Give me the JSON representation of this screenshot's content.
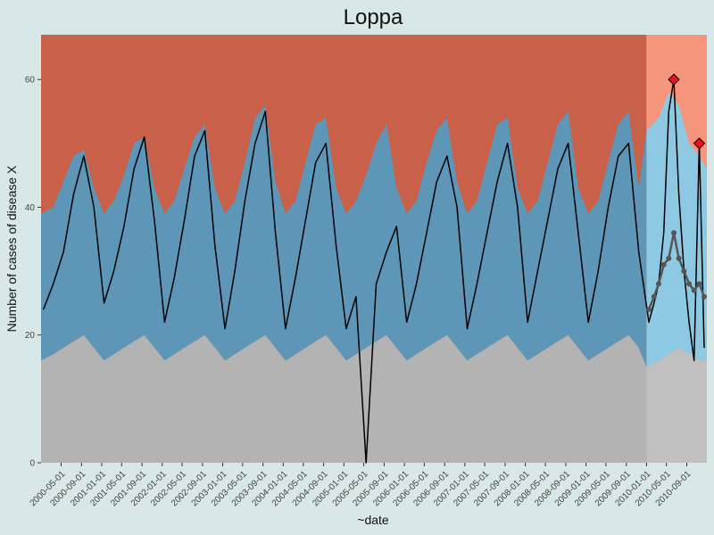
{
  "chart_data": {
    "type": "area",
    "title": "Loppa",
    "xlabel": "~date",
    "ylabel": "Number of cases of disease X",
    "ylim": [
      0,
      67
    ],
    "xlim": [
      "2000-01-01",
      "2010-12-31"
    ],
    "y_ticks": [
      0,
      20,
      40,
      60
    ],
    "x_ticks": [
      "2000-05-01",
      "2000-09-01",
      "2001-01-01",
      "2001-05-01",
      "2001-09-01",
      "2002-01-01",
      "2002-05-01",
      "2002-09-01",
      "2003-01-01",
      "2003-05-01",
      "2003-09-01",
      "2004-01-01",
      "2004-05-01",
      "2004-09-01",
      "2005-01-01",
      "2005-05-01",
      "2005-09-01",
      "2006-01-01",
      "2006-05-01",
      "2006-09-01",
      "2007-01-01",
      "2007-05-01",
      "2007-09-01",
      "2008-01-01",
      "2008-05-01",
      "2008-09-01",
      "2009-01-01",
      "2009-05-01",
      "2009-09-01",
      "2010-01-01",
      "2010-05-01",
      "2010-09-01"
    ],
    "baseline_period": [
      "2000-01-01",
      "2009-12-31"
    ],
    "surveillance_period": [
      "2010-01-01",
      "2010-12-31"
    ],
    "grid": false,
    "legend": "none",
    "series": [
      {
        "x": [
          "2000-01",
          "2000-03",
          "2000-05",
          "2000-07",
          "2000-09",
          "2000-11",
          "2001-01",
          "2001-03",
          "2001-05",
          "2001-07",
          "2001-09",
          "2001-11",
          "2002-01",
          "2002-03",
          "2002-05",
          "2002-07",
          "2002-09",
          "2002-11",
          "2003-01",
          "2003-03",
          "2003-05",
          "2003-07",
          "2003-09",
          "2003-11",
          "2004-01",
          "2004-03",
          "2004-05",
          "2004-07",
          "2004-09",
          "2004-11",
          "2005-01",
          "2005-03",
          "2005-05",
          "2005-07",
          "2005-09",
          "2005-11",
          "2006-01",
          "2006-03",
          "2006-05",
          "2006-07",
          "2006-09",
          "2006-11",
          "2007-01",
          "2007-03",
          "2007-05",
          "2007-07",
          "2007-09",
          "2007-11",
          "2008-01",
          "2008-03",
          "2008-05",
          "2008-07",
          "2008-09",
          "2008-11",
          "2009-01",
          "2009-03",
          "2009-05",
          "2009-07",
          "2009-09",
          "2009-11",
          "2010-01",
          "2010-02",
          "2010-03",
          "2010-04",
          "2010-05",
          "2010-06",
          "2010-07",
          "2010-08",
          "2010-09",
          "2010-10",
          "2010-11",
          "2010-12"
        ],
        "y": [
          24,
          28,
          33,
          42,
          48,
          40,
          25,
          30,
          37,
          46,
          51,
          38,
          22,
          29,
          38,
          48,
          52,
          34,
          21,
          30,
          41,
          50,
          55,
          36,
          21,
          29,
          38,
          47,
          50,
          34,
          21,
          26,
          0,
          28,
          33,
          37,
          22,
          28,
          36,
          44,
          48,
          40,
          21,
          28,
          36,
          44,
          50,
          40,
          22,
          30,
          38,
          46,
          50,
          36,
          22,
          30,
          40,
          48,
          50,
          33,
          22,
          25,
          28,
          36,
          55,
          60,
          42,
          30,
          22,
          16,
          50,
          18
        ],
        "type": "line"
      },
      {
        "x": [
          "2010-01",
          "2010-02",
          "2010-03",
          "2010-04",
          "2010-05",
          "2010-06",
          "2010-07",
          "2010-08",
          "2010-09",
          "2010-10",
          "2010-11",
          "2010-12"
        ],
        "y": [
          24,
          26,
          28,
          31,
          32,
          36,
          32,
          30,
          28,
          27,
          28,
          26
        ],
        "type": "line-points"
      }
    ],
    "bands": {
      "x": [
        "2000-01",
        "2000-03",
        "2000-05",
        "2000-07",
        "2000-09",
        "2000-11",
        "2001-01",
        "2001-03",
        "2001-05",
        "2001-07",
        "2001-09",
        "2001-11",
        "2002-01",
        "2002-03",
        "2002-05",
        "2002-07",
        "2002-09",
        "2002-11",
        "2003-01",
        "2003-03",
        "2003-05",
        "2003-07",
        "2003-09",
        "2003-11",
        "2004-01",
        "2004-03",
        "2004-05",
        "2004-07",
        "2004-09",
        "2004-11",
        "2005-01",
        "2005-03",
        "2005-05",
        "2005-07",
        "2005-09",
        "2005-11",
        "2006-01",
        "2006-03",
        "2006-05",
        "2006-07",
        "2006-09",
        "2006-11",
        "2007-01",
        "2007-03",
        "2007-05",
        "2007-07",
        "2007-09",
        "2007-11",
        "2008-01",
        "2008-03",
        "2008-05",
        "2008-07",
        "2008-09",
        "2008-11",
        "2009-01",
        "2009-03",
        "2009-05",
        "2009-07",
        "2009-09",
        "2009-11",
        "2010-01",
        "2010-03",
        "2010-05",
        "2010-07",
        "2010-09",
        "2010-11",
        "2010-12"
      ],
      "lower": [
        16,
        17,
        18,
        19,
        20,
        18,
        16,
        17,
        18,
        19,
        20,
        18,
        16,
        17,
        18,
        19,
        20,
        18,
        16,
        17,
        18,
        19,
        20,
        18,
        16,
        17,
        18,
        19,
        20,
        18,
        16,
        17,
        18,
        19,
        20,
        18,
        16,
        17,
        18,
        19,
        20,
        18,
        16,
        17,
        18,
        19,
        20,
        18,
        16,
        17,
        18,
        19,
        20,
        18,
        16,
        17,
        18,
        19,
        20,
        18,
        15,
        16,
        17,
        18,
        17,
        16,
        16
      ],
      "upper": [
        39,
        40,
        44,
        48,
        49,
        43,
        39,
        41,
        45,
        50,
        51,
        43,
        39,
        41,
        46,
        51,
        53,
        43,
        39,
        41,
        47,
        54,
        56,
        44,
        39,
        41,
        47,
        53,
        54,
        43,
        39,
        41,
        45,
        50,
        53,
        43,
        39,
        41,
        47,
        52,
        54,
        44,
        39,
        41,
        47,
        53,
        54,
        43,
        39,
        41,
        47,
        53,
        55,
        43,
        39,
        41,
        47,
        53,
        55,
        43,
        52,
        54,
        58,
        56,
        50,
        48,
        46
      ]
    },
    "alerts": [
      {
        "x": "2010-06",
        "y": 60
      },
      {
        "x": "2010-11",
        "y": 50
      }
    ],
    "colors": {
      "background": "#d8e7e7",
      "high": "#c9604a",
      "high_surveillance": "#f5967c",
      "normal": "#5d96b7",
      "normal_surveillance": "#8ec9e4",
      "low": "#b3b3b3",
      "low_surveillance": "#c0c0c0",
      "line": "#000000",
      "points": "#555555",
      "alert": "#e8141e"
    }
  }
}
